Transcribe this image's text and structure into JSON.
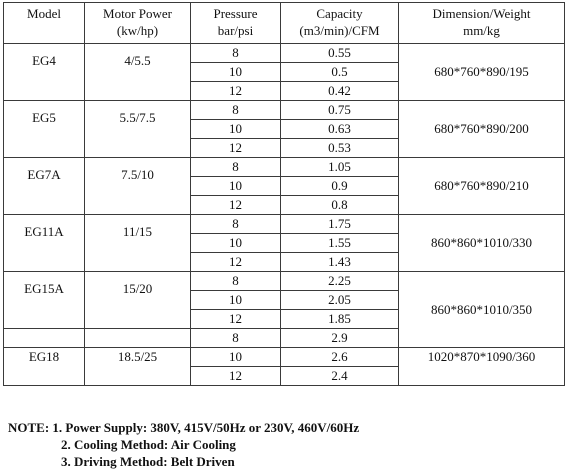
{
  "table": {
    "headers": [
      {
        "line1": "Model",
        "line2": ""
      },
      {
        "line1": "Motor Power",
        "line2": "(kw/hp)"
      },
      {
        "line1": "Pressure",
        "line2": "bar/psi"
      },
      {
        "line1": "Capacity",
        "line2": "(m3/min)/CFM"
      },
      {
        "line1": "Dimension/Weight",
        "line2": "mm/kg"
      }
    ],
    "groups": [
      {
        "model": "EG4",
        "power": "4/5.5",
        "dimension": "680*760*890/195",
        "rows": [
          {
            "pressure": "8",
            "capacity": "0.55"
          },
          {
            "pressure": "10",
            "capacity": "0.5"
          },
          {
            "pressure": "12",
            "capacity": "0.42"
          }
        ]
      },
      {
        "model": "EG5",
        "power": "5.5/7.5",
        "dimension": "680*760*890/200",
        "rows": [
          {
            "pressure": "8",
            "capacity": "0.75"
          },
          {
            "pressure": "10",
            "capacity": "0.63"
          },
          {
            "pressure": "12",
            "capacity": "0.53"
          }
        ]
      },
      {
        "model": "EG7A",
        "power": "7.5/10",
        "dimension": "680*760*890/210",
        "rows": [
          {
            "pressure": "8",
            "capacity": "1.05"
          },
          {
            "pressure": "10",
            "capacity": "0.9"
          },
          {
            "pressure": "12",
            "capacity": "0.8"
          }
        ]
      },
      {
        "model": "EG11A",
        "power": "11/15",
        "dimension": "860*860*1010/330",
        "rows": [
          {
            "pressure": "8",
            "capacity": "1.75"
          },
          {
            "pressure": "10",
            "capacity": "1.55"
          },
          {
            "pressure": "12",
            "capacity": "1.43"
          }
        ]
      },
      {
        "model": "EG15A",
        "power": "15/20",
        "dimension": "860*860*1010/350",
        "rows": [
          {
            "pressure": "8",
            "capacity": "2.25"
          },
          {
            "pressure": "10",
            "capacity": "2.05"
          },
          {
            "pressure": "12",
            "capacity": "1.85"
          }
        ]
      },
      {
        "model": "EG18",
        "power": "18.5/25",
        "dimension": "1020*870*1090/360",
        "rows": [
          {
            "pressure": "8",
            "capacity": "2.9"
          },
          {
            "pressure": "10",
            "capacity": "2.6"
          },
          {
            "pressure": "12",
            "capacity": "2.4"
          }
        ]
      }
    ]
  },
  "notes": {
    "line1": "NOTE: 1. Power Supply: 380V, 415V/50Hz or 230V, 460V/60Hz",
    "line2": "2. Cooling Method: Air Cooling",
    "line3": "3. Driving Method: Belt Driven"
  }
}
